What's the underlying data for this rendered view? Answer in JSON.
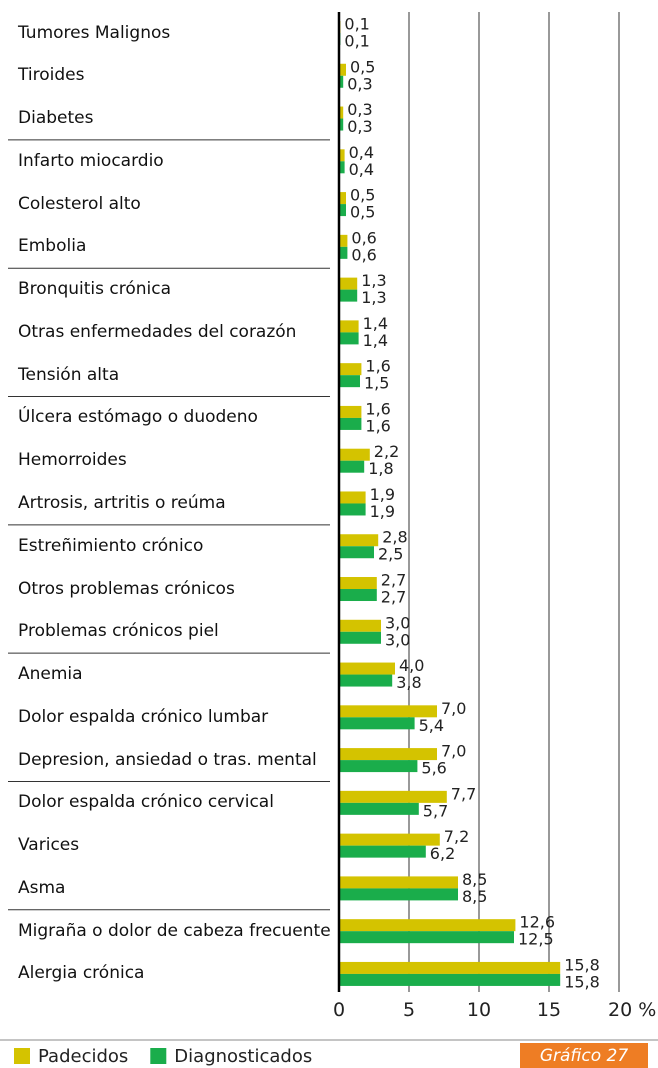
{
  "chart_data": {
    "type": "bar",
    "orientation": "horizontal",
    "categories": [
      "Tumores Malignos",
      "Tiroides",
      "Diabetes",
      "Infarto miocardio",
      "Colesterol alto",
      "Embolia",
      "Bronquitis crónica",
      "Otras enfermedades del corazón",
      "Tensión alta",
      "Úlcera estómago o duodeno",
      "Hemorroides",
      "Artrosis, artritis o reúma",
      "Estreñimiento crónico",
      "Otros problemas crónicos",
      "Problemas crónicos piel",
      "Anemia",
      "Dolor espalda crónico lumbar",
      "Depresion, ansiedad o tras. mental",
      "Dolor espalda crónico cervical",
      "Varices",
      "Asma",
      "Migraña o dolor de cabeza frecuente",
      "Alergia crónica"
    ],
    "series": [
      {
        "name": "Padecidos",
        "color": "#d4c300",
        "values": [
          0.1,
          0.5,
          0.3,
          0.4,
          0.5,
          0.6,
          1.3,
          1.4,
          1.6,
          1.6,
          2.2,
          1.9,
          2.8,
          2.7,
          3.0,
          4.0,
          7.0,
          7.0,
          7.7,
          7.2,
          8.5,
          12.6,
          15.8
        ],
        "value_labels": [
          "0,1",
          "0,5",
          "0,3",
          "0,4",
          "0,5",
          "0,6",
          "1,3",
          "1,4",
          "1,6",
          "1,6",
          "2,2",
          "1,9",
          "2,8",
          "2,7",
          "3,0",
          "4,0",
          "7,0",
          "7,0",
          "7,7",
          "7,2",
          "8,5",
          "12,6",
          "15,8"
        ]
      },
      {
        "name": "Diagnosticados",
        "color": "#1aad4b",
        "values": [
          0.1,
          0.3,
          0.3,
          0.4,
          0.5,
          0.6,
          1.3,
          1.4,
          1.5,
          1.6,
          1.8,
          1.9,
          2.5,
          2.7,
          3.0,
          3.8,
          5.4,
          5.6,
          5.7,
          6.2,
          8.5,
          12.5,
          15.8
        ],
        "value_labels": [
          "0,1",
          "0,3",
          "0,3",
          "0,4",
          "0,5",
          "0,6",
          "1,3",
          "1,4",
          "1,5",
          "1,6",
          "1,8",
          "1,9",
          "2,5",
          "2,7",
          "3,0",
          "3,8",
          "5,4",
          "5,6",
          "5,7",
          "6,2",
          "8,5",
          "12,5",
          "15,8"
        ]
      }
    ],
    "xlim": [
      0,
      20
    ],
    "xticks": [
      0,
      5,
      10,
      15,
      {
        "value": 20,
        "label": "20 %"
      }
    ],
    "grid": true,
    "legend": "bottom-left",
    "badge": "Gráfico 27"
  }
}
